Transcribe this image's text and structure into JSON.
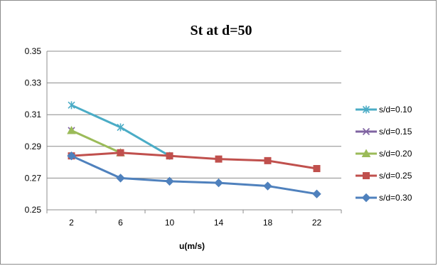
{
  "chart_data": {
    "type": "line",
    "title": "St at d=50",
    "xlabel": "u(m/s)",
    "ylabel": "",
    "categories": [
      "2",
      "6",
      "10",
      "14",
      "18",
      "22"
    ],
    "ylim": [
      0.25,
      0.35
    ],
    "yticks": [
      0.25,
      0.27,
      0.29,
      0.31,
      0.33,
      0.35
    ],
    "ytick_labels": [
      "0.25",
      "0.27",
      "0.29",
      "0.31",
      "0.33",
      "0.35"
    ],
    "grid": true,
    "legend_position": "right",
    "series": [
      {
        "name": "s/d=0.10",
        "color": "#4bacc6",
        "marker": "star",
        "values": [
          0.316,
          0.302,
          0.284,
          null,
          null,
          null
        ]
      },
      {
        "name": "s/d=0.15",
        "color": "#8064a2",
        "marker": "x",
        "values": [
          0.3,
          null,
          null,
          null,
          null,
          null
        ]
      },
      {
        "name": "s/d=0.20",
        "color": "#9bbb59",
        "marker": "triangle",
        "values": [
          0.3,
          0.286,
          null,
          null,
          null,
          null
        ]
      },
      {
        "name": "s/d=0.25",
        "color": "#c0504d",
        "marker": "square",
        "values": [
          0.284,
          0.286,
          0.284,
          0.282,
          0.281,
          0.276
        ]
      },
      {
        "name": "s/d=0.30",
        "color": "#4f81bd",
        "marker": "diamond",
        "values": [
          0.284,
          0.27,
          0.268,
          0.267,
          0.265,
          0.26
        ]
      }
    ]
  }
}
